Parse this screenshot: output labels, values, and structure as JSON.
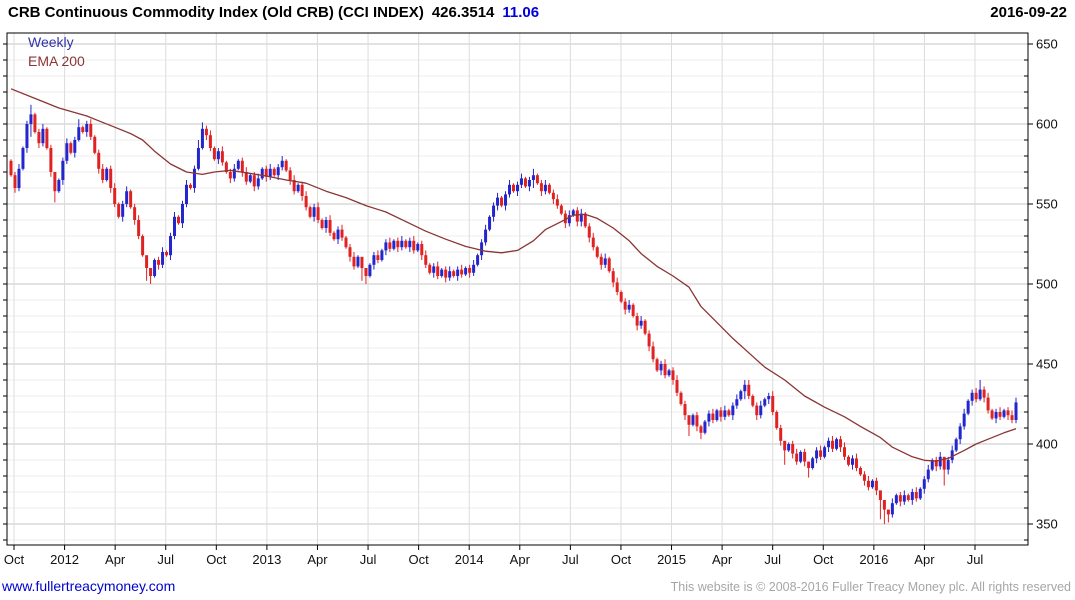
{
  "header": {
    "title": "CRB Continuous Commodity Index (Old CRB) (CCI INDEX)",
    "last_price": "426.3514",
    "change": "11.06",
    "date": "2016-09-22"
  },
  "legend": {
    "timeframe": "Weekly",
    "overlay": "EMA 200"
  },
  "footer": {
    "site_link": "www.fullertreacymoney.com",
    "copyright": "This website is © 2008-2016 Fuller Treacy Money plc. All rights reserved"
  },
  "colors": {
    "up_candle": "#2326cc",
    "down_candle": "#e02222",
    "ema_line": "#8b3434",
    "grid_minor": "#ededed",
    "grid_major": "#c6c6c6",
    "grid_vertical": "#dcdcdc",
    "axis_border": "#000000",
    "change_text": "#0000dd",
    "link_text": "#0000cc"
  },
  "chart_data": {
    "type": "candlestick",
    "timeframe": "weekly",
    "title": "CRB Continuous Commodity Index (Old CRB) (CCI INDEX)",
    "x_tick_labels": [
      "Oct",
      "2012",
      "Apr",
      "Jul",
      "Oct",
      "2013",
      "Apr",
      "Jul",
      "Oct",
      "2014",
      "Apr",
      "Jul",
      "Oct",
      "2015",
      "Apr",
      "Jul",
      "Oct",
      "2016",
      "Apr",
      "Jul"
    ],
    "y_tick_labels": [
      650,
      600,
      550,
      500,
      450,
      400,
      350
    ],
    "y_minor_step": 10,
    "ylim": [
      337,
      657
    ],
    "grid": true,
    "legend_position": "top-left",
    "series": [
      {
        "name": "CCI INDEX weekly candles",
        "kind": "candles",
        "first_open": 577,
        "closes": [
          568,
          560,
          572,
          585,
          600,
          606,
          595,
          588,
          597,
          585,
          570,
          558,
          565,
          577,
          588,
          582,
          590,
          598,
          595,
          600,
          592,
          582,
          572,
          565,
          572,
          560,
          550,
          542,
          550,
          558,
          548,
          540,
          530,
          518,
          510,
          505,
          515,
          512,
          520,
          518,
          530,
          542,
          538,
          550,
          562,
          560,
          572,
          585,
          597,
          593,
          585,
          578,
          583,
          576,
          570,
          566,
          572,
          577,
          570,
          564,
          568,
          561,
          566,
          572,
          567,
          572,
          568,
          573,
          577,
          571,
          565,
          558,
          562,
          555,
          548,
          542,
          548,
          540,
          535,
          540,
          532,
          528,
          534,
          529,
          523,
          517,
          511,
          517,
          510,
          505,
          512,
          518,
          515,
          521,
          526,
          522,
          527,
          523,
          527,
          523,
          527,
          521,
          525,
          518,
          512,
          507,
          511,
          505,
          509,
          504,
          508,
          505,
          509,
          506,
          510,
          507,
          512,
          518,
          526,
          534,
          542,
          549,
          554,
          549,
          556,
          562,
          558,
          562,
          566,
          561,
          565,
          568,
          563,
          558,
          562,
          557,
          553,
          549,
          544,
          538,
          543,
          546,
          539,
          544,
          536,
          529,
          523,
          517,
          512,
          516,
          508,
          501,
          495,
          489,
          484,
          487,
          480,
          474,
          477,
          469,
          461,
          453,
          446,
          450,
          443,
          446,
          440,
          432,
          425,
          418,
          412,
          418,
          411,
          407,
          414,
          419,
          415,
          421,
          417,
          421,
          418,
          424,
          428,
          433,
          437,
          430,
          424,
          418,
          424,
          428,
          430,
          420,
          410,
          402,
          396,
          400,
          394,
          389,
          395,
          389,
          385,
          391,
          396,
          392,
          398,
          402,
          397,
          403,
          398,
          392,
          387,
          391,
          385,
          381,
          377,
          373,
          377,
          371,
          365,
          359,
          356,
          363,
          368,
          364,
          368,
          365,
          370,
          366,
          372,
          378,
          384,
          390,
          386,
          392,
          384,
          390,
          396,
          403,
          411,
          419,
          427,
          432,
          428,
          434,
          429,
          421,
          416,
          420,
          417,
          421,
          418,
          415,
          426
        ],
        "wick_overrides": {
          "5": [
            612,
            592
          ],
          "11": [
            561,
            551
          ],
          "17": [
            603,
            589
          ],
          "34": [
            515,
            502
          ],
          "35": [
            510,
            500
          ],
          "47": [
            590,
            571
          ],
          "48": [
            601,
            584
          ],
          "88": [
            511,
            502
          ],
          "89": [
            508,
            500
          ],
          "122": [
            557,
            546
          ],
          "131": [
            572,
            560
          ],
          "143": [
            547,
            536
          ],
          "170": [
            417,
            405
          ],
          "173": [
            412,
            403
          ],
          "184": [
            440,
            428
          ],
          "194": [
            399,
            387
          ],
          "200": [
            389,
            379
          ],
          "218": [
            366,
            353
          ],
          "219": [
            361,
            350
          ],
          "220": [
            359,
            351
          ],
          "234": [
            391,
            374
          ],
          "243": [
            440,
            427
          ],
          "252": [
            429,
            413
          ]
        }
      },
      {
        "name": "EMA 200",
        "kind": "line",
        "points": [
          [
            0,
            622
          ],
          [
            6,
            616
          ],
          [
            12,
            610
          ],
          [
            19,
            605
          ],
          [
            22,
            602
          ],
          [
            26,
            598
          ],
          [
            30,
            594
          ],
          [
            33,
            590
          ],
          [
            36,
            583
          ],
          [
            40,
            575
          ],
          [
            44,
            570
          ],
          [
            48,
            568.5
          ],
          [
            51,
            570
          ],
          [
            55,
            571
          ],
          [
            59,
            569.5
          ],
          [
            64,
            567.5
          ],
          [
            69,
            565
          ],
          [
            74,
            563
          ],
          [
            79,
            558
          ],
          [
            84,
            554
          ],
          [
            89,
            549
          ],
          [
            94,
            545
          ],
          [
            99,
            539
          ],
          [
            104,
            533
          ],
          [
            109,
            528
          ],
          [
            114,
            523.5
          ],
          [
            119,
            520.5
          ],
          [
            123,
            519.5
          ],
          [
            127,
            521
          ],
          [
            131,
            527
          ],
          [
            134,
            534
          ],
          [
            138,
            539
          ],
          [
            141,
            543
          ],
          [
            144,
            543.5
          ],
          [
            147,
            541
          ],
          [
            151,
            535
          ],
          [
            155,
            527
          ],
          [
            158,
            519
          ],
          [
            162,
            511
          ],
          [
            166,
            505
          ],
          [
            170,
            498
          ],
          [
            173,
            486
          ],
          [
            177,
            476
          ],
          [
            181,
            466
          ],
          [
            185,
            457
          ],
          [
            189,
            448
          ],
          [
            194,
            440
          ],
          [
            199,
            430
          ],
          [
            204,
            423
          ],
          [
            209,
            417
          ],
          [
            213,
            411
          ],
          [
            218,
            404
          ],
          [
            221,
            398
          ],
          [
            226,
            392
          ],
          [
            229,
            389.8
          ],
          [
            232,
            389.3
          ],
          [
            235,
            391
          ],
          [
            239,
            396
          ],
          [
            242,
            400
          ],
          [
            245,
            403
          ],
          [
            249,
            407
          ],
          [
            252,
            409.5
          ]
        ]
      }
    ]
  }
}
